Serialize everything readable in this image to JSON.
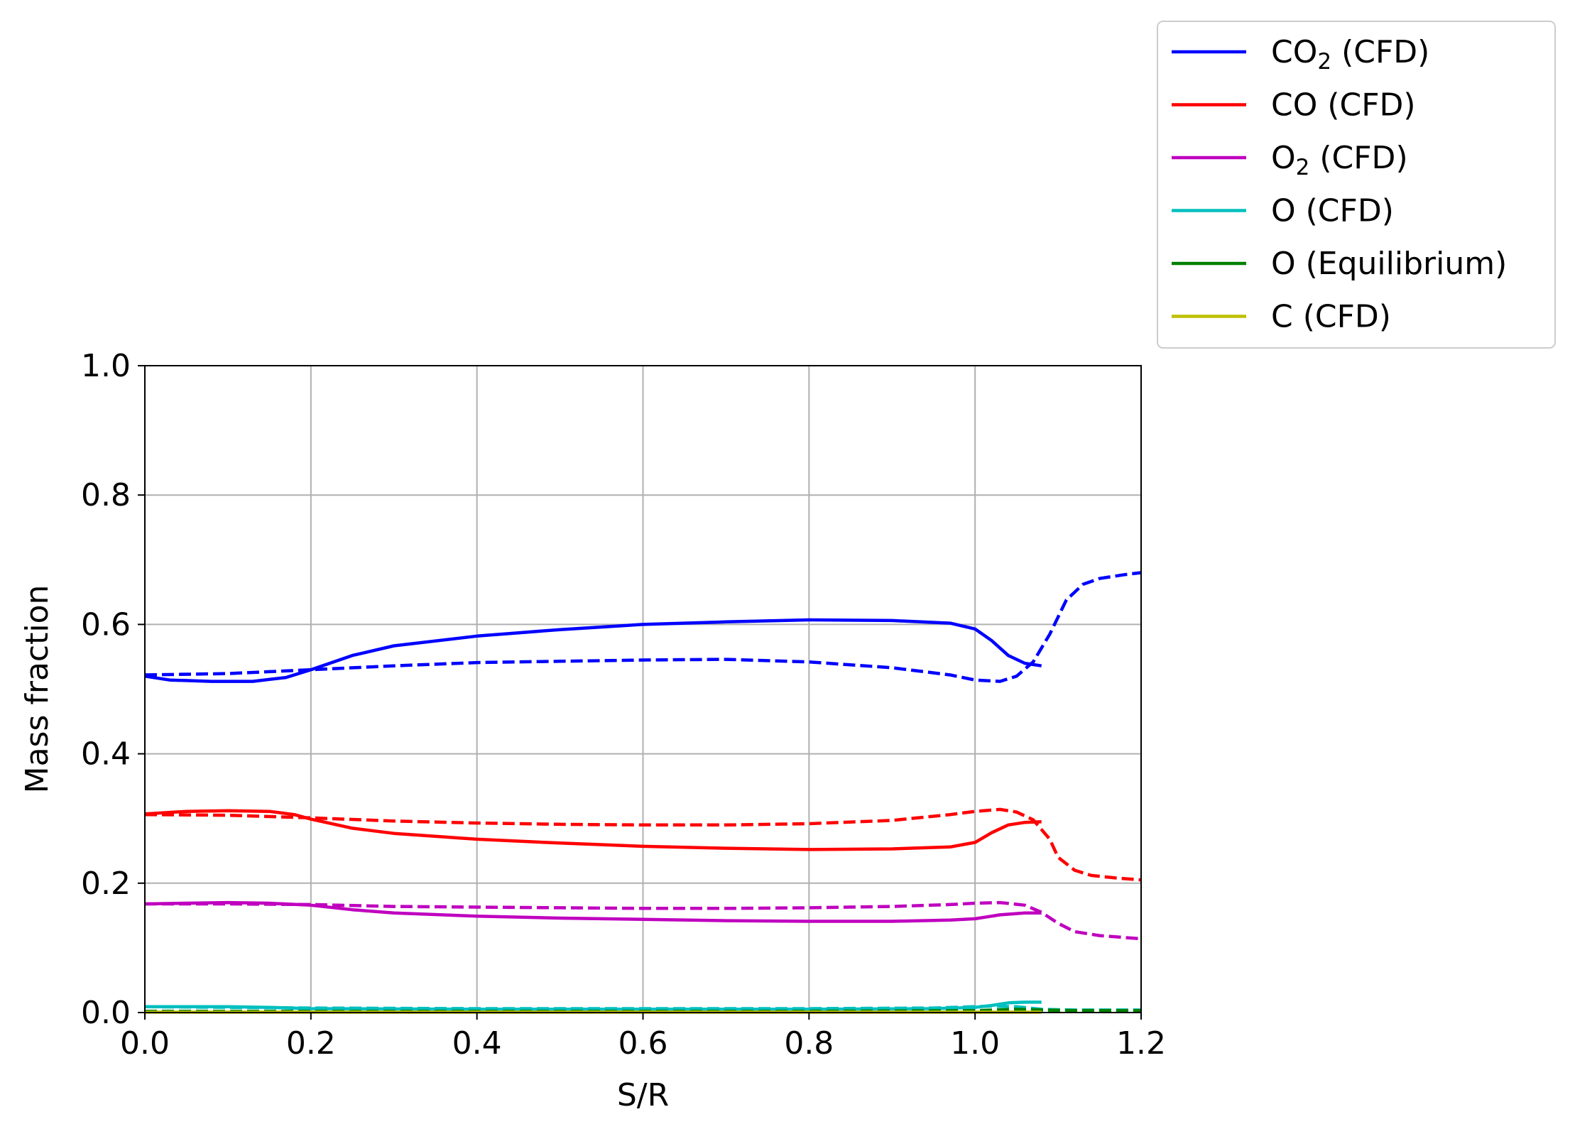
{
  "chart_data": {
    "type": "line",
    "title": "",
    "xlabel": "S/R",
    "ylabel": "Mass fraction",
    "xlim": [
      0.0,
      1.2
    ],
    "ylim": [
      0.0,
      1.0
    ],
    "xticks": [
      "0.0",
      "0.2",
      "0.4",
      "0.6",
      "0.8",
      "1.0",
      "1.2"
    ],
    "yticks": [
      "0.0",
      "0.2",
      "0.4",
      "0.6",
      "0.8",
      "1.0"
    ],
    "grid": true,
    "legend_position": "outside top-right",
    "legend": [
      {
        "base": "CO",
        "sub": "2",
        "suffix": " (CFD)",
        "color": "#0000ff"
      },
      {
        "base": "CO",
        "sub": "",
        "suffix": " (CFD)",
        "color": "#ff0000"
      },
      {
        "base": "O",
        "sub": "2",
        "suffix": " (CFD)",
        "color": "#bf00bf"
      },
      {
        "base": "O",
        "sub": "",
        "suffix": " (CFD)",
        "color": "#00bfbf"
      },
      {
        "base": "O",
        "sub": "",
        "suffix": " (Equilibrium)",
        "color": "#008000"
      },
      {
        "base": "C",
        "sub": "",
        "suffix": " (CFD)",
        "color": "#bfbf00"
      }
    ],
    "series": [
      {
        "color": "#0000ff",
        "style": "solid",
        "points": [
          [
            0,
            0.52
          ],
          [
            0.03,
            0.514
          ],
          [
            0.08,
            0.512
          ],
          [
            0.13,
            0.512
          ],
          [
            0.17,
            0.518
          ],
          [
            0.2,
            0.53
          ],
          [
            0.25,
            0.552
          ],
          [
            0.3,
            0.567
          ],
          [
            0.4,
            0.582
          ],
          [
            0.5,
            0.592
          ],
          [
            0.6,
            0.6
          ],
          [
            0.7,
            0.604
          ],
          [
            0.8,
            0.607
          ],
          [
            0.9,
            0.606
          ],
          [
            0.97,
            0.602
          ],
          [
            1.0,
            0.593
          ],
          [
            1.02,
            0.575
          ],
          [
            1.04,
            0.552
          ],
          [
            1.06,
            0.54
          ],
          [
            1.08,
            0.536
          ]
        ]
      },
      {
        "color": "#0000ff",
        "style": "dashed",
        "points": [
          [
            0,
            0.522
          ],
          [
            0.1,
            0.524
          ],
          [
            0.2,
            0.53
          ],
          [
            0.3,
            0.536
          ],
          [
            0.4,
            0.541
          ],
          [
            0.5,
            0.543
          ],
          [
            0.6,
            0.545
          ],
          [
            0.7,
            0.546
          ],
          [
            0.8,
            0.542
          ],
          [
            0.9,
            0.533
          ],
          [
            0.97,
            0.522
          ],
          [
            1.0,
            0.514
          ],
          [
            1.03,
            0.512
          ],
          [
            1.05,
            0.52
          ],
          [
            1.07,
            0.542
          ],
          [
            1.09,
            0.585
          ],
          [
            1.11,
            0.638
          ],
          [
            1.13,
            0.662
          ],
          [
            1.15,
            0.671
          ],
          [
            1.18,
            0.677
          ],
          [
            1.2,
            0.68
          ]
        ]
      },
      {
        "color": "#ff0000",
        "style": "solid",
        "points": [
          [
            0,
            0.307
          ],
          [
            0.05,
            0.311
          ],
          [
            0.1,
            0.312
          ],
          [
            0.15,
            0.311
          ],
          [
            0.18,
            0.306
          ],
          [
            0.2,
            0.299
          ],
          [
            0.25,
            0.285
          ],
          [
            0.3,
            0.277
          ],
          [
            0.4,
            0.268
          ],
          [
            0.5,
            0.262
          ],
          [
            0.6,
            0.257
          ],
          [
            0.7,
            0.254
          ],
          [
            0.8,
            0.252
          ],
          [
            0.9,
            0.253
          ],
          [
            0.97,
            0.256
          ],
          [
            1.0,
            0.263
          ],
          [
            1.02,
            0.278
          ],
          [
            1.04,
            0.29
          ],
          [
            1.06,
            0.294
          ],
          [
            1.08,
            0.295
          ]
        ]
      },
      {
        "color": "#ff0000",
        "style": "dashed",
        "points": [
          [
            0,
            0.306
          ],
          [
            0.1,
            0.305
          ],
          [
            0.2,
            0.301
          ],
          [
            0.3,
            0.296
          ],
          [
            0.4,
            0.293
          ],
          [
            0.5,
            0.291
          ],
          [
            0.6,
            0.29
          ],
          [
            0.7,
            0.29
          ],
          [
            0.8,
            0.292
          ],
          [
            0.9,
            0.297
          ],
          [
            0.97,
            0.306
          ],
          [
            1.0,
            0.311
          ],
          [
            1.03,
            0.314
          ],
          [
            1.05,
            0.31
          ],
          [
            1.07,
            0.298
          ],
          [
            1.09,
            0.268
          ],
          [
            1.1,
            0.24
          ],
          [
            1.12,
            0.22
          ],
          [
            1.14,
            0.212
          ],
          [
            1.17,
            0.208
          ],
          [
            1.2,
            0.205
          ]
        ]
      },
      {
        "color": "#bf00bf",
        "style": "solid",
        "points": [
          [
            0,
            0.168
          ],
          [
            0.05,
            0.169
          ],
          [
            0.1,
            0.17
          ],
          [
            0.15,
            0.169
          ],
          [
            0.2,
            0.166
          ],
          [
            0.25,
            0.159
          ],
          [
            0.3,
            0.154
          ],
          [
            0.4,
            0.149
          ],
          [
            0.5,
            0.146
          ],
          [
            0.6,
            0.144
          ],
          [
            0.7,
            0.142
          ],
          [
            0.8,
            0.141
          ],
          [
            0.9,
            0.141
          ],
          [
            0.97,
            0.143
          ],
          [
            1.0,
            0.145
          ],
          [
            1.03,
            0.151
          ],
          [
            1.06,
            0.154
          ],
          [
            1.08,
            0.154
          ]
        ]
      },
      {
        "color": "#bf00bf",
        "style": "dashed",
        "points": [
          [
            0,
            0.168
          ],
          [
            0.1,
            0.168
          ],
          [
            0.2,
            0.167
          ],
          [
            0.3,
            0.164
          ],
          [
            0.4,
            0.163
          ],
          [
            0.5,
            0.162
          ],
          [
            0.6,
            0.161
          ],
          [
            0.7,
            0.161
          ],
          [
            0.8,
            0.162
          ],
          [
            0.9,
            0.164
          ],
          [
            0.97,
            0.167
          ],
          [
            1.0,
            0.169
          ],
          [
            1.03,
            0.17
          ],
          [
            1.06,
            0.166
          ],
          [
            1.08,
            0.155
          ],
          [
            1.1,
            0.138
          ],
          [
            1.12,
            0.125
          ],
          [
            1.15,
            0.119
          ],
          [
            1.18,
            0.116
          ],
          [
            1.2,
            0.114
          ]
        ]
      },
      {
        "color": "#00bfbf",
        "style": "solid",
        "points": [
          [
            0,
            0.009
          ],
          [
            0.1,
            0.009
          ],
          [
            0.15,
            0.008
          ],
          [
            0.2,
            0.006
          ],
          [
            0.4,
            0.005
          ],
          [
            0.6,
            0.005
          ],
          [
            0.8,
            0.005
          ],
          [
            0.95,
            0.006
          ],
          [
            1.0,
            0.008
          ],
          [
            1.02,
            0.011
          ],
          [
            1.04,
            0.015
          ],
          [
            1.06,
            0.016
          ],
          [
            1.08,
            0.016
          ]
        ]
      },
      {
        "color": "#00bfbf",
        "style": "dashed",
        "points": [
          [
            0,
            0.009
          ],
          [
            0.2,
            0.007
          ],
          [
            0.4,
            0.006
          ],
          [
            0.6,
            0.006
          ],
          [
            0.8,
            0.006
          ],
          [
            0.95,
            0.007
          ],
          [
            1.02,
            0.01
          ],
          [
            1.05,
            0.009
          ],
          [
            1.08,
            0.005
          ],
          [
            1.12,
            0.004
          ],
          [
            1.2,
            0.004
          ]
        ]
      },
      {
        "color": "#008000",
        "style": "dashed",
        "points": [
          [
            0,
            0.002
          ],
          [
            0.4,
            0.002
          ],
          [
            0.8,
            0.002
          ],
          [
            1.0,
            0.003
          ],
          [
            1.05,
            0.005
          ],
          [
            1.08,
            0.004
          ],
          [
            1.12,
            0.003
          ],
          [
            1.2,
            0.003
          ]
        ]
      },
      {
        "color": "#bfbf00",
        "style": "solid",
        "points": [
          [
            0,
            0.0005
          ],
          [
            0.5,
            0.0005
          ],
          [
            1.0,
            0.0005
          ],
          [
            1.08,
            0.0005
          ]
        ]
      }
    ]
  }
}
